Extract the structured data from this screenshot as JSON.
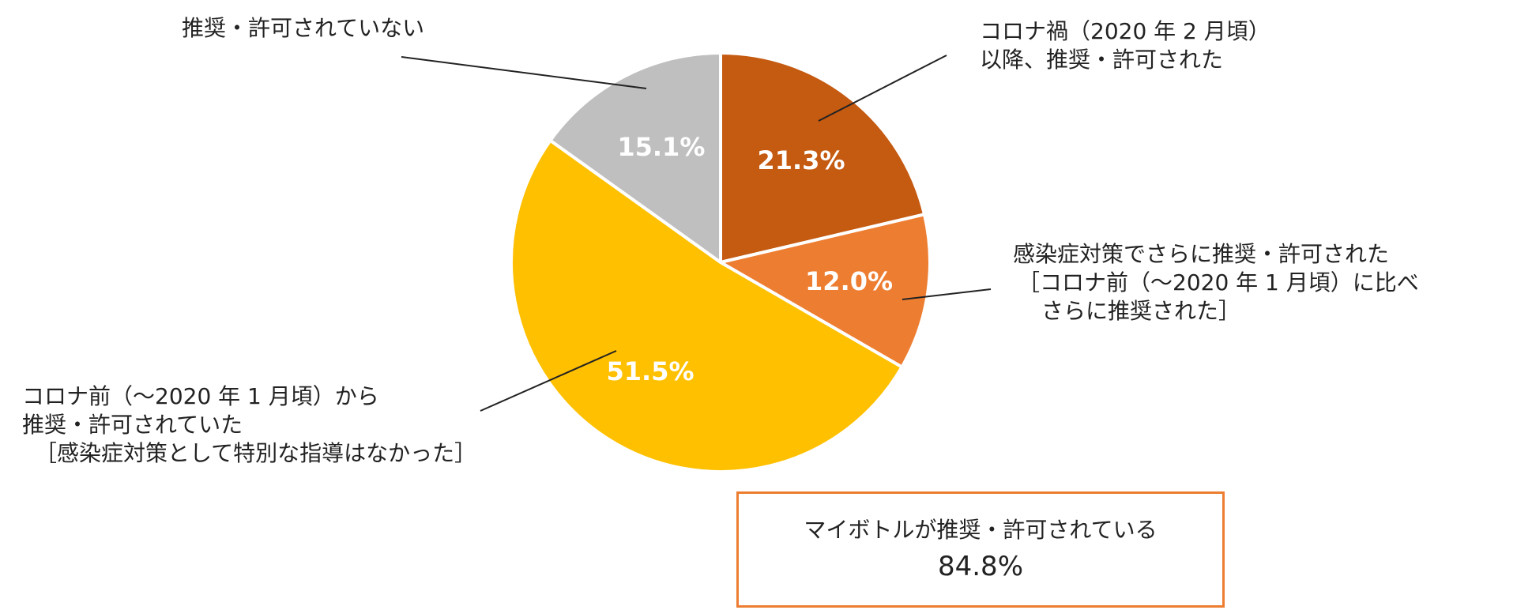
{
  "chart_data": {
    "type": "pie",
    "title": "",
    "start": "12 o'clock, clockwise",
    "slices": [
      {
        "label": "コロナ禍（2020 年 2 月頃）以降、推奨・許可された",
        "value": 21.3,
        "value_label": "21.3%",
        "color": "#C55A11"
      },
      {
        "label": "感染症対策でさらに推奨・許可された［コロナ前（～2020 年 1 月頃）に比べさらに推奨された］",
        "value": 12.0,
        "value_label": "12.0%",
        "color": "#ED7D31"
      },
      {
        "label": "コロナ前（～2020 年 1 月頃）から推奨・許可されていた［感染症対策として特別な指導はなかった］",
        "value": 51.5,
        "value_label": "51.5%",
        "color": "#FFC000"
      },
      {
        "label": "推奨・許可されていない",
        "value": 15.1,
        "value_label": "15.1%",
        "color": "#BFBFBF"
      }
    ]
  },
  "annotations": {
    "s0": [
      "コロナ禍（2020 年 2 月頃）",
      "以降、推奨・許可された"
    ],
    "s1": [
      "感染症対策でさらに推奨・許可された",
      "［コロナ前（～2020 年 1 月頃）に比べ",
      "さらに推奨された］"
    ],
    "s2": [
      "コロナ前（～2020 年 1 月頃）から",
      "推奨・許可されていた",
      "［感染症対策として特別な指導はなかった］"
    ],
    "s3": [
      "推奨・許可されていない"
    ]
  },
  "summary": {
    "label": "マイボトルが推奨・許可されている",
    "value": "84.8%",
    "border_color": "#ED7D31"
  }
}
